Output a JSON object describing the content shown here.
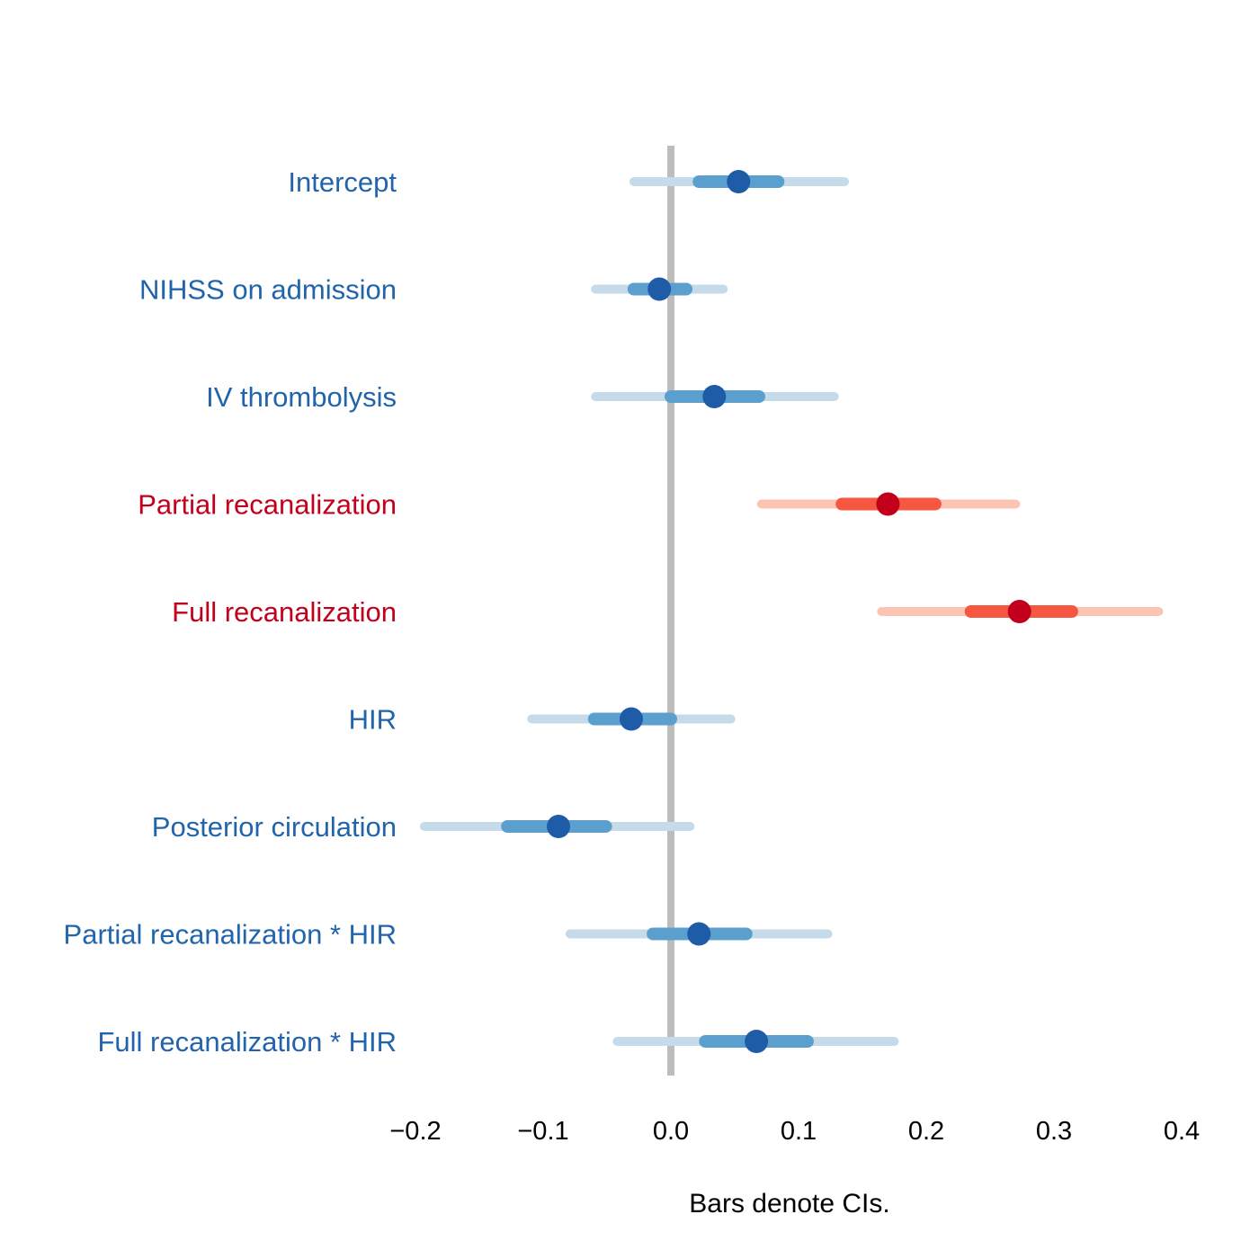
{
  "chart_data": {
    "type": "forest",
    "xlabel": "Bars denote CIs.",
    "xlim": [
      -0.2,
      0.4
    ],
    "xticks": [
      -0.2,
      -0.1,
      0.0,
      0.1,
      0.2,
      0.3,
      0.4
    ],
    "xtick_labels": [
      "−0.2",
      "−0.1",
      "0.0",
      "0.1",
      "0.2",
      "0.3",
      "0.4"
    ],
    "reference_line": 0.0,
    "colors": {
      "negative_outer": "#c6dbea",
      "negative_inner": "#5b9fcf",
      "negative_point": "#1f5ca8",
      "negative_label": "#2264ac",
      "positive_outer": "#fcc5b3",
      "positive_inner": "#f65740",
      "positive_point": "#c3001b",
      "positive_label": "#c3001b",
      "reference": "#bdbdbd"
    },
    "rows": [
      {
        "label": "Intercept",
        "estimate": 0.053,
        "inner": [
          0.022,
          0.084
        ],
        "outer": [
          -0.029,
          0.136
        ],
        "credible": false
      },
      {
        "label": "NIHSS on admission",
        "estimate": -0.009,
        "inner": [
          -0.029,
          0.012
        ],
        "outer": [
          -0.059,
          0.041
        ],
        "credible": false
      },
      {
        "label": "IV thrombolysis",
        "estimate": 0.034,
        "inner": [
          0.0,
          0.069
        ],
        "outer": [
          -0.059,
          0.128
        ],
        "credible": false
      },
      {
        "label": "Partial recanalization",
        "estimate": 0.17,
        "inner": [
          0.134,
          0.207
        ],
        "outer": [
          0.071,
          0.27
        ],
        "credible": true
      },
      {
        "label": "Full recanalization",
        "estimate": 0.273,
        "inner": [
          0.235,
          0.314
        ],
        "outer": [
          0.165,
          0.382
        ],
        "credible": true
      },
      {
        "label": "HIR",
        "estimate": -0.031,
        "inner": [
          -0.06,
          0.0
        ],
        "outer": [
          -0.109,
          0.047
        ],
        "credible": false
      },
      {
        "label": "Posterior circulation",
        "estimate": -0.088,
        "inner": [
          -0.128,
          -0.051
        ],
        "outer": [
          -0.193,
          0.015
        ],
        "credible": false
      },
      {
        "label": "Partial recanalization * HIR",
        "estimate": 0.022,
        "inner": [
          -0.014,
          0.059
        ],
        "outer": [
          -0.079,
          0.123
        ],
        "credible": false
      },
      {
        "label": "Full recanalization * HIR",
        "estimate": 0.067,
        "inner": [
          0.027,
          0.107
        ],
        "outer": [
          -0.042,
          0.175
        ],
        "credible": false
      }
    ]
  }
}
